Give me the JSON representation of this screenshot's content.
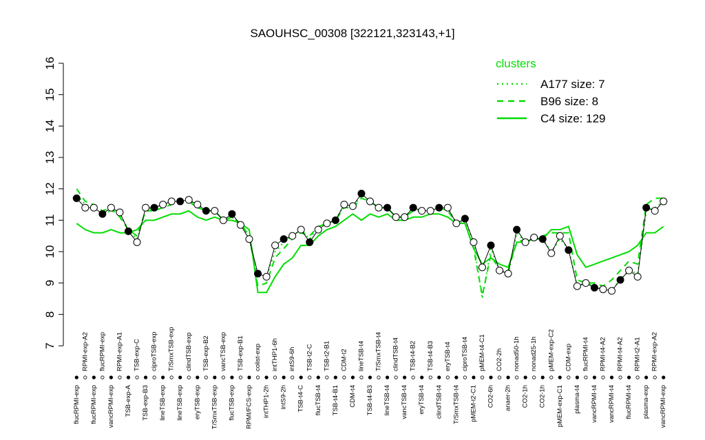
{
  "chart_data": {
    "type": "line",
    "title": "SAOUHSC_00308 [322121,323143,+1]",
    "categories": [
      "flucRPMI-exp",
      "RPMI-exp-A2",
      "flucRPMI-exp",
      "flucRPMI-exp",
      "vancRPMI-exp",
      "RPMI-exp-A1",
      "TSB-exp-A",
      "TSB-exp-C",
      "TSB-exp-B3",
      "ciproTSB-exp",
      "lineTSB-exp",
      "T/SmxTSB-exp",
      "lineTSB-exp",
      "clindTSB-exp",
      "eryTSB-exp",
      "TSB-exp-B2",
      "T/SmxTSB-exp",
      "vancTSB-exp",
      "flucTSB-exp",
      "TSB-exp-B1",
      "RPMI/FCS-exp",
      "colist-exp",
      "intTHP1-2h",
      "intTHP1-6h",
      "intS9-2h",
      "intS9-6h",
      "TSB-t4-C",
      "TSB-t2-C",
      "flucTSB-t4",
      "TSB-t2-B1",
      "TSB-t4-B1",
      "CDM-t2",
      "CDM-t4",
      "lineTSB-t4",
      "TSB-t4-B3",
      "T/SmxTSB-t4",
      "lineTSB-t4",
      "clindTSB-t4",
      "vancTSB-t4",
      "TSB-t4-B2",
      "eryTSB-t4",
      "TSB-t4-B3",
      "clindTSB-t4",
      "eryTSB-t4",
      "T/SmxTSB-t4",
      "ciproTSB-t4",
      "pMEM-t2-C1",
      "pMEM-t4-C1",
      "CO2-6h",
      "CO2-2h",
      "anaer-2h",
      "nonad50-1h",
      "CO2-1h",
      "nonad25-1h",
      "CO2-1h",
      "pMEM-exp-C2",
      "pMEM-exp-C1",
      "CDM-exp",
      "plasma-t4",
      "flucRPMI-t4",
      "vancRPMI-t4",
      "RPMI-t4-A2",
      "vancRPMI-t4",
      "RPMI-t4-A2",
      "flucRPMI-t4",
      "RPMI-t2-A1",
      "plasma-exp",
      "RPMI-exp-A2",
      "vancRPMI-exp"
    ],
    "values": [
      11.7,
      11.4,
      11.4,
      11.2,
      11.4,
      11.25,
      10.65,
      10.3,
      11.4,
      11.4,
      11.5,
      11.6,
      11.6,
      11.65,
      11.5,
      11.3,
      11.3,
      11.0,
      11.2,
      10.85,
      10.4,
      9.3,
      9.2,
      10.2,
      10.4,
      10.5,
      10.7,
      10.3,
      10.7,
      10.9,
      11.0,
      11.5,
      11.45,
      11.85,
      11.6,
      11.4,
      11.4,
      11.1,
      11.1,
      11.4,
      11.3,
      11.3,
      11.4,
      11.4,
      10.9,
      11.05,
      10.3,
      9.5,
      10.2,
      9.4,
      9.3,
      10.7,
      10.3,
      10.45,
      10.4,
      9.95,
      10.5,
      10.05,
      8.9,
      9.0,
      8.85,
      8.8,
      8.75,
      9.1,
      9.4,
      9.2,
      11.4,
      11.3,
      11.6
    ],
    "series": [
      {
        "name": "A177 size: 7",
        "color": "#00dd00",
        "dash": "dotted",
        "values": [
          11.8,
          11.5,
          11.4,
          11.2,
          11.3,
          11.2,
          10.7,
          10.4,
          11.3,
          11.4,
          11.5,
          11.6,
          11.6,
          11.6,
          11.5,
          11.3,
          11.3,
          11.0,
          11.1,
          10.9,
          10.4,
          9.2,
          9.2,
          10.0,
          10.3,
          10.5,
          10.7,
          10.4,
          10.8,
          10.9,
          11.0,
          11.5,
          11.4,
          11.8,
          11.6,
          11.4,
          11.4,
          11.1,
          11.1,
          11.4,
          11.3,
          11.3,
          11.4,
          11.4,
          10.9,
          11.0,
          10.3,
          8.5,
          10.1,
          9.4,
          9.3,
          10.6,
          10.3,
          10.4,
          10.4,
          10.0,
          10.4,
          10.1,
          8.9,
          9.0,
          8.9,
          8.8,
          8.8,
          9.1,
          9.4,
          9.3,
          11.3,
          11.4,
          11.6
        ]
      },
      {
        "name": "B96 size: 8",
        "color": "#00dd00",
        "dash": "dashed",
        "values": [
          12.0,
          11.6,
          11.5,
          11.3,
          11.4,
          11.1,
          10.7,
          10.5,
          11.3,
          11.3,
          11.4,
          11.5,
          11.6,
          11.6,
          11.4,
          11.3,
          11.3,
          11.0,
          11.1,
          10.9,
          10.5,
          8.9,
          9.0,
          9.8,
          10.1,
          10.4,
          10.6,
          10.5,
          10.8,
          10.9,
          11.0,
          11.4,
          11.4,
          11.7,
          11.6,
          11.4,
          11.4,
          11.1,
          11.1,
          11.3,
          11.3,
          11.3,
          11.4,
          11.3,
          10.9,
          10.9,
          10.1,
          8.6,
          9.9,
          9.4,
          9.4,
          10.3,
          10.4,
          10.4,
          10.5,
          10.6,
          10.6,
          10.6,
          9.1,
          9.0,
          9.0,
          8.9,
          9.1,
          9.4,
          9.7,
          9.6,
          11.5,
          11.7,
          11.7
        ]
      },
      {
        "name": "C4 size: 129",
        "color": "#00dd00",
        "dash": "solid",
        "values": [
          10.9,
          10.7,
          10.6,
          10.6,
          10.7,
          10.6,
          10.6,
          10.7,
          11.0,
          11.0,
          11.1,
          11.2,
          11.2,
          11.3,
          11.1,
          11.0,
          11.1,
          11.0,
          11.0,
          10.9,
          10.7,
          8.7,
          8.7,
          9.2,
          9.6,
          9.8,
          10.2,
          10.2,
          10.5,
          10.7,
          10.8,
          11.0,
          11.2,
          11.0,
          11.2,
          11.1,
          11.2,
          11.0,
          11.0,
          11.1,
          11.1,
          11.2,
          11.2,
          11.1,
          10.9,
          10.9,
          10.1,
          9.6,
          9.8,
          9.6,
          9.5,
          10.3,
          10.3,
          10.4,
          10.4,
          10.7,
          10.7,
          10.8,
          9.9,
          9.5,
          9.6,
          9.7,
          9.8,
          9.9,
          10.0,
          10.2,
          10.6,
          10.6,
          10.8
        ]
      }
    ],
    "legend_title": "clusters",
    "ylim": [
      7,
      16
    ],
    "yticks": [
      7,
      8,
      9,
      10,
      11,
      12,
      13,
      14,
      15,
      16
    ]
  }
}
